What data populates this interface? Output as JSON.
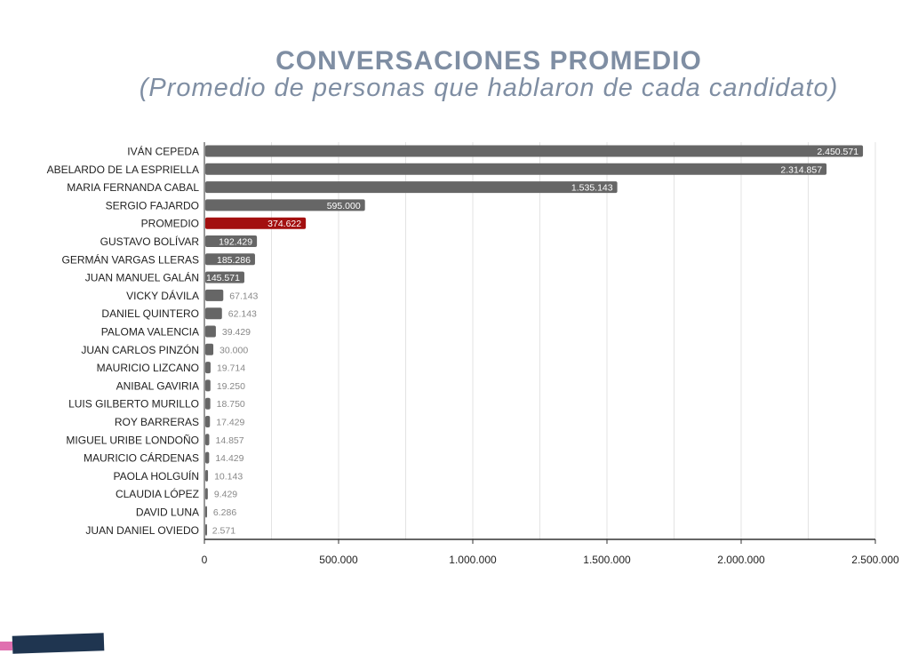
{
  "chart_data": {
    "type": "bar",
    "orientation": "horizontal",
    "title": "CONVERSACIONES PROMEDIO",
    "subtitle": "(Promedio de personas que hablaron de cada candidato)",
    "categories": [
      "IVÁN CEPEDA",
      "ABELARDO DE LA ESPRIELLA",
      "MARIA FERNANDA CABAL",
      "SERGIO FAJARDO",
      "PROMEDIO",
      "GUSTAVO BOLÍVAR",
      "GERMÁN VARGAS LLERAS",
      "JUAN MANUEL GALÁN",
      "VICKY DÁVILA",
      "DANIEL QUINTERO",
      "PALOMA VALENCIA",
      "JUAN CARLOS PINZÓN",
      "MAURICIO LIZCANO",
      "ANIBAL GAVIRIA",
      "LUIS GILBERTO MURILLO",
      "ROY BARRERAS",
      "MIGUEL URIBE LONDOÑO",
      "MAURICIO CÁRDENAS",
      "PAOLA HOLGUÍN",
      "CLAUDIA LÓPEZ",
      "DAVID LUNA",
      "JUAN DANIEL OVIEDO"
    ],
    "values": [
      2450571,
      2314857,
      1535143,
      595000,
      374622,
      192429,
      185286,
      145571,
      67143,
      62143,
      39429,
      30000,
      19714,
      19250,
      18750,
      17429,
      14857,
      14429,
      10143,
      9429,
      6286,
      2571
    ],
    "data_labels": [
      "2.450.571",
      "2.314.857",
      "1.535.143",
      "595.000",
      "374.622",
      "192.429",
      "185.286",
      "145.571",
      "67.143",
      "62.143",
      "39.429",
      "30.000",
      "19.714",
      "19.250",
      "18.750",
      "17.429",
      "14.857",
      "14.429",
      "10.143",
      "9.429",
      "6.286",
      "2.571"
    ],
    "xlim": [
      0,
      2500000
    ],
    "xticks": [
      0,
      500000,
      1000000,
      1500000,
      2000000,
      2500000
    ],
    "xtick_labels": [
      "0",
      "500.000",
      "1.000.000",
      "1.500.000",
      "2.000.000",
      "2.500.000"
    ],
    "grid": true,
    "colors": {
      "bar": "#666666",
      "highlight": "#a30f0f",
      "title": "#7f8ea3"
    },
    "highlight_category": "PROMEDIO"
  }
}
